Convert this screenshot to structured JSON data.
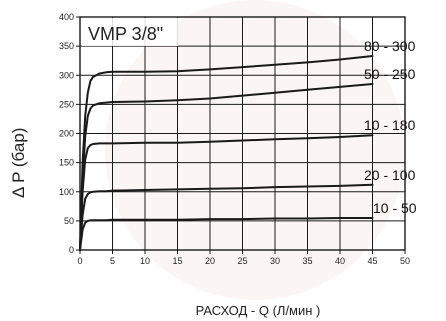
{
  "chart_data": {
    "type": "line",
    "title": "VMP 3/8\"",
    "xlabel": "РАСХОД - Q (Л/мин )",
    "ylabel": "Δ P   (бар)",
    "xlim": [
      0,
      50
    ],
    "ylim": [
      0,
      400
    ],
    "xticks": [
      "0",
      "5",
      "10",
      "15",
      "20",
      "25",
      "30",
      "35",
      "40",
      "45",
      "50"
    ],
    "yticks": [
      "0",
      "50",
      "100",
      "150",
      "200",
      "250",
      "300",
      "350",
      "400"
    ],
    "grid": true,
    "series": [
      {
        "name": "80 - 300",
        "x": [
          0,
          0.4,
          0.8,
          1.2,
          1.6,
          2,
          3,
          4,
          5,
          10,
          15,
          20,
          25,
          30,
          35,
          40,
          45
        ],
        "y": [
          0,
          150,
          230,
          270,
          290,
          297,
          303,
          305,
          306,
          306,
          307,
          310,
          314,
          318,
          322,
          327,
          333
        ]
      },
      {
        "name": "50 - 250",
        "x": [
          0,
          0.4,
          0.8,
          1.2,
          1.6,
          2,
          3,
          4,
          5,
          10,
          15,
          20,
          25,
          30,
          35,
          40,
          45
        ],
        "y": [
          0,
          120,
          195,
          230,
          243,
          248,
          252,
          253,
          254,
          255,
          257,
          260,
          265,
          270,
          275,
          280,
          285
        ]
      },
      {
        "name": "10 - 180",
        "x": [
          0,
          0.4,
          0.8,
          1.2,
          1.6,
          2,
          3,
          4,
          5,
          10,
          15,
          20,
          25,
          30,
          35,
          40,
          45
        ],
        "y": [
          0,
          100,
          155,
          175,
          180,
          182,
          183,
          183,
          183,
          184,
          184,
          186,
          188,
          190,
          192,
          194,
          197
        ]
      },
      {
        "name": "20 - 100",
        "x": [
          0,
          0.4,
          0.8,
          1.2,
          1.6,
          2,
          3,
          4,
          5,
          10,
          15,
          20,
          25,
          30,
          35,
          40,
          45
        ],
        "y": [
          0,
          60,
          88,
          96,
          99,
          100,
          101,
          101,
          102,
          103,
          104,
          105,
          106,
          108,
          109,
          110,
          112
        ]
      },
      {
        "name": "10 - 50",
        "x": [
          0,
          0.4,
          0.8,
          1.2,
          1.6,
          2,
          3,
          4,
          5,
          10,
          15,
          20,
          25,
          30,
          35,
          40,
          45
        ],
        "y": [
          0,
          35,
          47,
          50,
          51,
          51,
          51,
          51,
          52,
          52,
          52,
          53,
          53,
          54,
          54,
          55,
          55
        ]
      }
    ]
  }
}
